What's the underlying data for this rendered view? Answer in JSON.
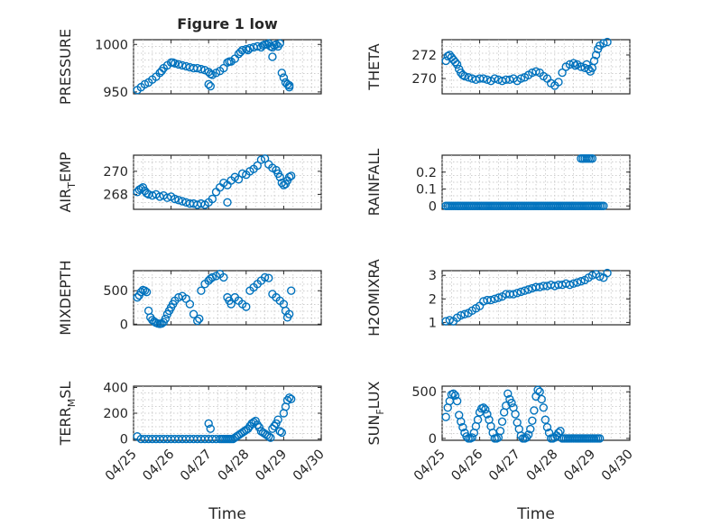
{
  "figure_title": "Figure 1 low",
  "colors": {
    "marker": "#0072BD",
    "axes": "#262626",
    "grid": "#bfbfbf"
  },
  "chart_data": [
    {
      "id": "pressure",
      "type": "scatter",
      "ylabel": "PRESSURE",
      "ylim": [
        948,
        1005
      ],
      "yticks": [
        950,
        1000
      ],
      "ytick_labels": [
        "950",
        "1000"
      ],
      "xlim": [
        0,
        5
      ],
      "grid": true,
      "minor_grid": true,
      "x": [
        0.1,
        0.2,
        0.3,
        0.4,
        0.5,
        0.6,
        0.7,
        0.75,
        0.8,
        0.9,
        1.0,
        1.05,
        1.1,
        1.2,
        1.3,
        1.4,
        1.5,
        1.6,
        1.7,
        1.8,
        1.9,
        2.0,
        2.05,
        2.1,
        2.2,
        2.3,
        2.4,
        2.5,
        2.55,
        2.6,
        2.7,
        2.8,
        2.85,
        2.9,
        3.0,
        3.05,
        3.1,
        3.2,
        3.3,
        3.4,
        3.45,
        3.5,
        3.55,
        3.6,
        3.65,
        3.7,
        3.75,
        3.8,
        3.85,
        3.9,
        3.95,
        4.0,
        4.05,
        4.1,
        4.15,
        2.0,
        2.05,
        3.7,
        4.15
      ],
      "y": [
        952,
        955,
        958,
        960,
        963,
        966,
        970,
        972,
        975,
        978,
        981,
        981,
        980,
        979,
        978,
        977,
        976,
        975,
        975,
        974,
        973,
        971,
        969,
        968,
        970,
        972,
        975,
        981,
        982,
        982,
        985,
        990,
        992,
        994,
        995,
        994,
        996,
        997,
        998,
        997,
        999,
        1000,
        1000,
        1001,
        998,
        997,
        999,
        1000,
        998,
        1001,
        970,
        965,
        960,
        958,
        957,
        958,
        956,
        987,
        955
      ]
    },
    {
      "id": "theta",
      "type": "scatter",
      "ylabel": "THETA",
      "ylim": [
        268.7,
        273.3
      ],
      "yticks": [
        270,
        272
      ],
      "ytick_labels": [
        "270",
        "272"
      ],
      "xlim": [
        0,
        5
      ],
      "grid": true,
      "minor_grid": true,
      "x": [
        0.1,
        0.15,
        0.2,
        0.25,
        0.3,
        0.35,
        0.4,
        0.45,
        0.5,
        0.55,
        0.6,
        0.7,
        0.8,
        0.9,
        1.0,
        1.1,
        1.2,
        1.3,
        1.4,
        1.5,
        1.6,
        1.7,
        1.8,
        1.9,
        2.0,
        2.1,
        2.2,
        2.3,
        2.4,
        2.5,
        2.6,
        2.7,
        2.8,
        2.9,
        3.0,
        3.1,
        3.2,
        3.3,
        3.4,
        3.5,
        3.55,
        3.6,
        3.7,
        3.8,
        3.85,
        3.9,
        3.95,
        4.0,
        4.05,
        4.1,
        4.15,
        4.2,
        4.3,
        4.4
      ],
      "y": [
        271.5,
        271.9,
        272.0,
        271.8,
        271.6,
        271.4,
        271.2,
        270.8,
        270.5,
        270.3,
        270.2,
        270.1,
        270.0,
        269.9,
        270.0,
        270.0,
        269.9,
        269.8,
        270.0,
        269.9,
        269.8,
        269.9,
        269.9,
        270.0,
        269.8,
        270.0,
        270.1,
        270.3,
        270.5,
        270.6,
        270.5,
        270.2,
        270.0,
        269.6,
        269.4,
        269.7,
        270.5,
        271.0,
        271.2,
        271.3,
        271.1,
        271.2,
        271.0,
        270.9,
        271.2,
        270.8,
        270.6,
        270.9,
        271.5,
        272.0,
        272.5,
        272.8,
        273.0,
        273.1
      ]
    },
    {
      "id": "air_temp",
      "type": "scatter",
      "ylabel": "AIR_TEMP",
      "ylim": [
        266.7,
        271.4
      ],
      "yticks": [
        268,
        270
      ],
      "ytick_labels": [
        "268",
        "270"
      ],
      "xlim": [
        0,
        5
      ],
      "grid": true,
      "minor_grid": true,
      "x": [
        0.1,
        0.15,
        0.2,
        0.25,
        0.3,
        0.35,
        0.4,
        0.5,
        0.6,
        0.7,
        0.8,
        0.9,
        1.0,
        1.1,
        1.2,
        1.3,
        1.4,
        1.5,
        1.6,
        1.7,
        1.8,
        1.9,
        2.0,
        2.1,
        2.2,
        2.3,
        2.4,
        2.5,
        2.6,
        2.7,
        2.8,
        2.9,
        3.0,
        3.1,
        3.2,
        3.3,
        3.4,
        3.5,
        3.6,
        3.7,
        3.8,
        3.85,
        3.9,
        3.95,
        4.0,
        4.05,
        4.1,
        4.15,
        4.2,
        2.5
      ],
      "y": [
        268.2,
        268.4,
        268.5,
        268.6,
        268.3,
        268.1,
        268.0,
        267.9,
        268.0,
        267.8,
        267.9,
        267.7,
        267.8,
        267.6,
        267.5,
        267.4,
        267.3,
        267.2,
        267.2,
        267.1,
        267.2,
        267.1,
        267.3,
        267.6,
        268.2,
        268.6,
        269.0,
        268.8,
        269.2,
        269.5,
        269.3,
        269.8,
        269.7,
        270.0,
        270.2,
        270.5,
        271.0,
        271.1,
        270.6,
        270.3,
        270.1,
        269.8,
        269.5,
        269.0,
        268.8,
        268.9,
        269.2,
        269.5,
        269.6,
        267.3
      ]
    },
    {
      "id": "rainfall",
      "type": "scatter",
      "ylabel": "RAINFALL",
      "ylim": [
        -0.02,
        0.3
      ],
      "yticks": [
        0,
        0.1,
        0.2
      ],
      "ytick_labels": [
        "0",
        "0.1",
        "0.2"
      ],
      "xlim": [
        0,
        5
      ],
      "grid": true,
      "minor_grid": true,
      "x_range_zero": [
        0.1,
        4.3
      ],
      "x_range_high": [
        3.7,
        4.0
      ],
      "series": [
        {
          "name": "rain",
          "values_note": ""
        }
      ]
    },
    {
      "id": "mixdepth",
      "type": "scatter",
      "ylabel": "MIXDEPTH",
      "ylim": [
        -10,
        800
      ],
      "yticks": [
        0,
        500
      ],
      "ytick_labels": [
        "0",
        "500"
      ],
      "xlim": [
        0,
        5
      ],
      "grid": true,
      "minor_grid": true,
      "x": [
        0.1,
        0.15,
        0.2,
        0.25,
        0.3,
        0.35,
        0.4,
        0.45,
        0.5,
        0.55,
        0.6,
        0.65,
        0.7,
        0.75,
        0.8,
        0.85,
        0.9,
        0.95,
        1.0,
        1.05,
        1.1,
        1.2,
        1.3,
        1.4,
        1.5,
        1.6,
        1.7,
        1.75,
        1.8,
        1.9,
        2.0,
        2.05,
        2.1,
        2.2,
        2.3,
        2.4,
        2.5,
        2.55,
        2.6,
        2.7,
        2.8,
        2.9,
        3.0,
        3.1,
        3.2,
        3.3,
        3.4,
        3.5,
        3.6,
        3.7,
        3.8,
        3.9,
        4.0,
        4.05,
        4.1,
        4.15,
        4.2
      ],
      "y": [
        400,
        430,
        480,
        510,
        500,
        480,
        200,
        100,
        60,
        40,
        20,
        10,
        5,
        10,
        30,
        80,
        150,
        200,
        250,
        300,
        350,
        400,
        420,
        380,
        300,
        150,
        50,
        80,
        500,
        600,
        650,
        680,
        700,
        720,
        750,
        700,
        400,
        350,
        300,
        400,
        350,
        300,
        260,
        500,
        550,
        600,
        650,
        700,
        690,
        450,
        400,
        350,
        300,
        200,
        100,
        150,
        500
      ]
    },
    {
      "id": "h2omixra",
      "type": "scatter",
      "ylabel": "H2OMIXRA",
      "ylim": [
        0.9,
        3.2
      ],
      "yticks": [
        1,
        2,
        3
      ],
      "ytick_labels": [
        "1",
        "2",
        "3"
      ],
      "xlim": [
        0,
        5
      ],
      "grid": true,
      "minor_grid": true,
      "x": [
        0.1,
        0.2,
        0.3,
        0.4,
        0.5,
        0.6,
        0.7,
        0.8,
        0.9,
        1.0,
        1.1,
        1.2,
        1.3,
        1.4,
        1.5,
        1.6,
        1.7,
        1.8,
        1.9,
        2.0,
        2.1,
        2.2,
        2.3,
        2.4,
        2.5,
        2.6,
        2.7,
        2.8,
        2.9,
        3.0,
        3.1,
        3.2,
        3.3,
        3.4,
        3.5,
        3.6,
        3.7,
        3.8,
        3.9,
        4.0,
        4.1,
        4.2,
        4.3,
        4.4
      ],
      "y": [
        1.05,
        1.1,
        1.05,
        1.2,
        1.3,
        1.35,
        1.4,
        1.5,
        1.6,
        1.7,
        1.9,
        1.95,
        1.95,
        2.0,
        2.05,
        2.1,
        2.2,
        2.2,
        2.2,
        2.25,
        2.3,
        2.35,
        2.4,
        2.45,
        2.5,
        2.5,
        2.55,
        2.55,
        2.6,
        2.55,
        2.6,
        2.6,
        2.65,
        2.6,
        2.65,
        2.7,
        2.75,
        2.8,
        2.9,
        3.0,
        3.05,
        2.95,
        2.9,
        3.1
      ]
    },
    {
      "id": "terr_msl",
      "type": "scatter",
      "ylabel": "TERR_MSL",
      "ylim": [
        -10,
        410
      ],
      "yticks": [
        0,
        200,
        400
      ],
      "ytick_labels": [
        "0",
        "200",
        "400"
      ],
      "xlim": [
        0,
        5
      ],
      "grid": true,
      "minor_grid": true,
      "x": [
        0.1,
        0.2,
        0.3,
        0.4,
        0.5,
        0.6,
        0.7,
        0.8,
        0.9,
        1.0,
        1.1,
        1.2,
        1.3,
        1.4,
        1.5,
        1.6,
        1.7,
        1.8,
        1.9,
        2.0,
        2.1,
        2.2,
        2.3,
        2.35,
        2.4,
        2.45,
        2.5,
        2.55,
        2.6,
        2.65,
        2.7,
        2.75,
        2.8,
        2.85,
        2.9,
        2.95,
        3.0,
        3.05,
        3.1,
        3.15,
        3.2,
        3.25,
        3.3,
        3.35,
        3.4,
        3.45,
        3.5,
        3.55,
        3.6,
        3.65,
        3.7,
        3.75,
        3.8,
        3.85,
        3.9,
        3.95,
        4.0,
        4.05,
        4.1,
        4.15,
        4.2,
        2.0,
        2.05
      ],
      "y": [
        20,
        0,
        0,
        0,
        0,
        0,
        0,
        0,
        0,
        0,
        0,
        0,
        0,
        0,
        0,
        0,
        0,
        0,
        0,
        0,
        0,
        0,
        0,
        0,
        0,
        0,
        0,
        0,
        0,
        0,
        10,
        20,
        30,
        40,
        50,
        60,
        70,
        80,
        100,
        120,
        130,
        140,
        110,
        90,
        60,
        50,
        40,
        30,
        20,
        10,
        80,
        100,
        120,
        150,
        60,
        50,
        200,
        250,
        300,
        320,
        310,
        120,
        80
      ]
    },
    {
      "id": "sun_flux",
      "type": "scatter",
      "ylabel": "SUN_FLUX",
      "ylim": [
        -20,
        560
      ],
      "yticks": [
        0,
        500
      ],
      "ytick_labels": [
        "0",
        "500"
      ],
      "xlim": [
        0,
        5
      ],
      "grid": true,
      "minor_grid": true,
      "x": [
        0.1,
        0.15,
        0.2,
        0.25,
        0.3,
        0.35,
        0.4,
        0.45,
        0.5,
        0.55,
        0.6,
        0.65,
        0.7,
        0.75,
        0.8,
        0.85,
        0.9,
        0.95,
        1.0,
        1.05,
        1.1,
        1.15,
        1.2,
        1.25,
        1.3,
        1.35,
        1.4,
        1.45,
        1.5,
        1.55,
        1.6,
        1.65,
        1.7,
        1.75,
        1.8,
        1.85,
        1.9,
        1.95,
        2.0,
        2.05,
        2.1,
        2.15,
        2.2,
        2.25,
        2.3,
        2.35,
        2.4,
        2.45,
        2.5,
        2.55,
        2.6,
        2.65,
        2.7,
        2.75,
        2.8,
        2.85,
        2.9,
        2.95,
        3.0,
        3.05,
        3.1,
        3.15,
        3.2,
        3.25,
        3.3,
        3.35,
        3.4,
        3.45,
        3.5,
        3.55,
        3.6,
        3.65,
        3.7,
        3.75,
        3.8,
        3.85,
        3.9,
        3.95,
        4.0,
        4.05,
        4.1,
        4.15,
        4.2
      ],
      "y": [
        230,
        330,
        400,
        470,
        480,
        460,
        400,
        250,
        180,
        120,
        60,
        20,
        0,
        0,
        10,
        60,
        130,
        200,
        280,
        320,
        330,
        310,
        260,
        200,
        130,
        60,
        0,
        0,
        10,
        80,
        180,
        280,
        350,
        480,
        420,
        380,
        330,
        260,
        170,
        100,
        30,
        0,
        0,
        10,
        40,
        100,
        190,
        300,
        450,
        520,
        500,
        420,
        330,
        200,
        120,
        60,
        0,
        0,
        10,
        30,
        60,
        80,
        0,
        0,
        0,
        0,
        0,
        0,
        0,
        0,
        0,
        0,
        0,
        0,
        0,
        0,
        0,
        0,
        0,
        0,
        0,
        0,
        0
      ]
    }
  ],
  "x_axis": {
    "tick_labels": [
      "04/25",
      "04/26",
      "04/27",
      "04/28",
      "04/29",
      "04/30"
    ],
    "xlabel": "Time"
  }
}
